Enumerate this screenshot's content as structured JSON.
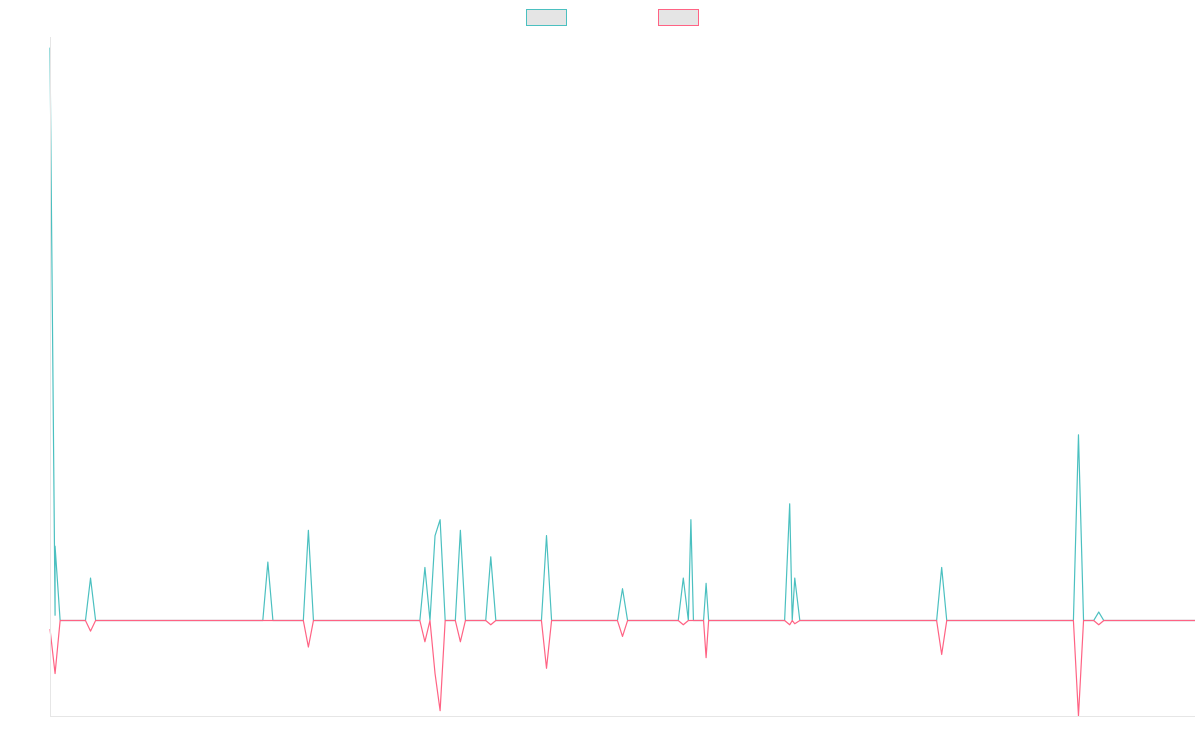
{
  "chart_data": {
    "type": "line",
    "title": "",
    "xlabel": "",
    "ylabel": "",
    "legend": {
      "position": "top-center"
    },
    "grid": false,
    "x_count": 227,
    "ylim": [
      -9,
      55
    ],
    "series": [
      {
        "color": "#4bc0c0",
        "legend_fill": "#e5e5e5",
        "points": [
          [
            0,
            54
          ],
          [
            1,
            0.5
          ],
          [
            1,
            7
          ],
          [
            2,
            0
          ],
          [
            7,
            0
          ],
          [
            8,
            4
          ],
          [
            9,
            0
          ],
          [
            10,
            0
          ],
          [
            11,
            0
          ],
          [
            12,
            0
          ],
          [
            20,
            0
          ],
          [
            33,
            0
          ],
          [
            42,
            0
          ],
          [
            43,
            5.5
          ],
          [
            44,
            0
          ],
          [
            50,
            0
          ],
          [
            51,
            8.5
          ],
          [
            52,
            0
          ],
          [
            63,
            0
          ],
          [
            73,
            0
          ],
          [
            74,
            5
          ],
          [
            75,
            0
          ],
          [
            76,
            8
          ],
          [
            77,
            9.5
          ],
          [
            78,
            0
          ],
          [
            80,
            0
          ],
          [
            81,
            8.5
          ],
          [
            82,
            0
          ],
          [
            86,
            0
          ],
          [
            87,
            6
          ],
          [
            88,
            0
          ],
          [
            97,
            0
          ],
          [
            98,
            8
          ],
          [
            99,
            0
          ],
          [
            100,
            0
          ],
          [
            112,
            0
          ],
          [
            113,
            3
          ],
          [
            114,
            0
          ],
          [
            124,
            0
          ],
          [
            125,
            4
          ],
          [
            126,
            0
          ],
          [
            126.5,
            9.5
          ],
          [
            127,
            0
          ],
          [
            129,
            0
          ],
          [
            129.5,
            3.5
          ],
          [
            130,
            0
          ],
          [
            145,
            0
          ],
          [
            146,
            11
          ],
          [
            146.5,
            0
          ],
          [
            147,
            4
          ],
          [
            148,
            0
          ],
          [
            175,
            0
          ],
          [
            176,
            5
          ],
          [
            177,
            0
          ],
          [
            183,
            0
          ],
          [
            202,
            0
          ],
          [
            203,
            17.5
          ],
          [
            204,
            0
          ],
          [
            206,
            0
          ],
          [
            207,
            0.8
          ],
          [
            208,
            0
          ],
          [
            226,
            0
          ]
        ]
      },
      {
        "color": "#ff6384",
        "legend_fill": "#e5e5e5",
        "points": [
          [
            0,
            -0.8
          ],
          [
            1,
            -5
          ],
          [
            2,
            0
          ],
          [
            7,
            0
          ],
          [
            8,
            -1
          ],
          [
            9,
            0
          ],
          [
            10,
            0
          ],
          [
            11,
            0
          ],
          [
            12,
            0
          ],
          [
            42,
            0
          ],
          [
            43,
            0
          ],
          [
            44,
            0
          ],
          [
            50,
            0
          ],
          [
            51,
            -2.5
          ],
          [
            52,
            0
          ],
          [
            73,
            0
          ],
          [
            74,
            -2
          ],
          [
            75,
            0
          ],
          [
            76,
            -5
          ],
          [
            77,
            -8.5
          ],
          [
            78,
            0
          ],
          [
            80,
            0
          ],
          [
            81,
            -2
          ],
          [
            82,
            0
          ],
          [
            86,
            0
          ],
          [
            87,
            -0.4
          ],
          [
            88,
            0
          ],
          [
            97,
            0
          ],
          [
            98,
            -4.5
          ],
          [
            99,
            0
          ],
          [
            112,
            0
          ],
          [
            113,
            -1.5
          ],
          [
            114,
            0
          ],
          [
            124,
            0
          ],
          [
            125,
            -0.4
          ],
          [
            126,
            0
          ],
          [
            127,
            0
          ],
          [
            129,
            0
          ],
          [
            129.5,
            -3.5
          ],
          [
            130,
            0
          ],
          [
            145,
            0
          ],
          [
            146,
            -0.4
          ],
          [
            146.5,
            0
          ],
          [
            147,
            -0.3
          ],
          [
            148,
            0
          ],
          [
            175,
            0
          ],
          [
            176,
            -3.2
          ],
          [
            177,
            0
          ],
          [
            202,
            0
          ],
          [
            203,
            -9
          ],
          [
            204,
            0
          ],
          [
            206,
            0
          ],
          [
            207,
            -0.4
          ],
          [
            208,
            0
          ],
          [
            226,
            0
          ]
        ]
      }
    ]
  }
}
